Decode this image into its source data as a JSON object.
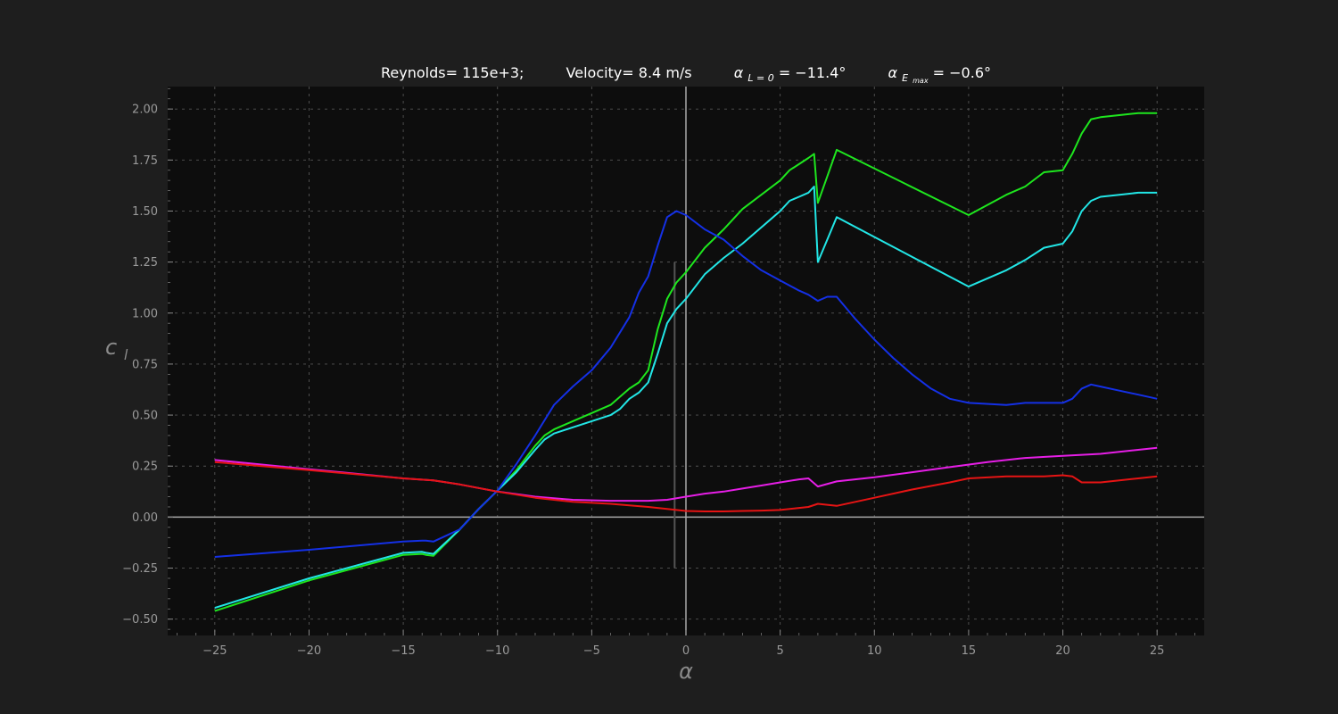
{
  "chart_data": {
    "type": "line",
    "title_parts": [
      "Reynolds= 115e+3;",
      "Velocity= 8.4 m/s",
      "α",
      "L = 0",
      " = −11.4°",
      "α",
      "E",
      "max",
      " = −0.6°"
    ],
    "xlabel": "α",
    "ylabel_main": "c",
    "ylabel_sub": "l",
    "xlim": [
      -27.5,
      27.5
    ],
    "ylim": [
      -0.58,
      2.11
    ],
    "x_ticks": [
      -25,
      -20,
      -15,
      -10,
      -5,
      0,
      5,
      10,
      15,
      20,
      25
    ],
    "x_tick_labels": [
      "−25",
      "−20",
      "−15",
      "−10",
      "−5",
      "0",
      "5",
      "10",
      "15",
      "20",
      "25"
    ],
    "y_ticks": [
      -0.5,
      -0.25,
      0.0,
      0.25,
      0.5,
      0.75,
      1.0,
      1.25,
      1.5,
      1.75,
      2.0
    ],
    "y_tick_labels": [
      "−0.50",
      "−0.25",
      "0.00",
      "0.25",
      "0.50",
      "0.75",
      "1.00",
      "1.25",
      "1.50",
      "1.75",
      "2.00"
    ],
    "grid": true,
    "reference_line": {
      "x": -0.6,
      "y_range": [
        -0.25,
        1.25
      ]
    },
    "series": [
      {
        "color": "#1ee61e",
        "x": [
          -25,
          -20,
          -15,
          -14,
          -13.8,
          -13.4,
          -12,
          -11,
          -10,
          -9,
          -8,
          -7.5,
          -7,
          -6,
          -5,
          -4,
          -3.5,
          -3,
          -2.5,
          -2,
          -1.5,
          -1,
          -0.5,
          0,
          1,
          2,
          3,
          4,
          5,
          5.5,
          6,
          6.5,
          6.8,
          7,
          8,
          15,
          17,
          18,
          19,
          20,
          20.5,
          21,
          21.5,
          22,
          23,
          24,
          25
        ],
        "y": [
          -0.46,
          -0.31,
          -0.185,
          -0.18,
          -0.185,
          -0.19,
          -0.06,
          0.04,
          0.13,
          0.23,
          0.35,
          0.4,
          0.43,
          0.47,
          0.51,
          0.55,
          0.59,
          0.63,
          0.66,
          0.72,
          0.92,
          1.07,
          1.15,
          1.2,
          1.32,
          1.41,
          1.51,
          1.58,
          1.65,
          1.7,
          1.73,
          1.76,
          1.78,
          1.54,
          1.8,
          1.48,
          1.58,
          1.62,
          1.69,
          1.7,
          1.78,
          1.88,
          1.95,
          1.96,
          1.97,
          1.98,
          1.98
        ]
      },
      {
        "color": "#22e6e6",
        "x": [
          -25,
          -20,
          -15,
          -14,
          -13.8,
          -13.4,
          -12,
          -11,
          -10,
          -9,
          -8,
          -7.5,
          -7,
          -6,
          -5,
          -4,
          -3.5,
          -3,
          -2.5,
          -2,
          -1.5,
          -1,
          -0.5,
          0,
          1,
          2,
          3,
          4,
          5,
          5.5,
          6,
          6.5,
          6.8,
          7,
          8,
          15,
          17,
          18,
          19,
          20,
          20.5,
          21,
          21.5,
          22,
          23,
          24,
          25
        ],
        "y": [
          -0.445,
          -0.3,
          -0.175,
          -0.17,
          -0.175,
          -0.18,
          -0.06,
          0.04,
          0.13,
          0.22,
          0.33,
          0.38,
          0.41,
          0.44,
          0.47,
          0.5,
          0.53,
          0.58,
          0.61,
          0.66,
          0.8,
          0.95,
          1.02,
          1.07,
          1.19,
          1.27,
          1.34,
          1.42,
          1.5,
          1.55,
          1.57,
          1.59,
          1.62,
          1.25,
          1.47,
          1.13,
          1.21,
          1.26,
          1.32,
          1.34,
          1.4,
          1.5,
          1.55,
          1.57,
          1.58,
          1.59,
          1.59
        ]
      },
      {
        "color": "#1430e6",
        "x": [
          -25,
          -20,
          -15,
          -14,
          -13.8,
          -13.4,
          -12,
          -11,
          -10,
          -9,
          -8,
          -7,
          -6,
          -5,
          -4,
          -3,
          -2.5,
          -2,
          -1.5,
          -1,
          -0.5,
          0,
          1,
          2,
          3,
          4,
          5,
          6,
          6.5,
          7,
          7.5,
          8,
          9,
          10,
          11,
          12,
          13,
          14,
          15,
          17,
          18,
          19,
          20,
          20.5,
          21,
          21.5,
          22,
          23,
          24,
          25
        ],
        "y": [
          -0.195,
          -0.16,
          -0.12,
          -0.115,
          -0.115,
          -0.12,
          -0.06,
          0.04,
          0.13,
          0.26,
          0.4,
          0.55,
          0.64,
          0.72,
          0.83,
          0.98,
          1.1,
          1.18,
          1.33,
          1.47,
          1.5,
          1.48,
          1.41,
          1.36,
          1.28,
          1.21,
          1.16,
          1.11,
          1.09,
          1.06,
          1.08,
          1.08,
          0.97,
          0.87,
          0.78,
          0.7,
          0.63,
          0.58,
          0.56,
          0.55,
          0.56,
          0.56,
          0.56,
          0.58,
          0.63,
          0.65,
          0.64,
          0.62,
          0.6,
          0.58
        ]
      },
      {
        "color": "#e61ee6",
        "x": [
          -25,
          -20,
          -15,
          -13.4,
          -12,
          -10,
          -8,
          -6,
          -4,
          -2,
          -1,
          0,
          1,
          2,
          3,
          4,
          5,
          6,
          6.5,
          7,
          8,
          10,
          12,
          14,
          16,
          18,
          20,
          22,
          25
        ],
        "y": [
          0.28,
          0.235,
          0.19,
          0.18,
          0.16,
          0.125,
          0.1,
          0.085,
          0.08,
          0.08,
          0.085,
          0.1,
          0.115,
          0.125,
          0.14,
          0.155,
          0.17,
          0.185,
          0.19,
          0.15,
          0.175,
          0.195,
          0.22,
          0.245,
          0.27,
          0.29,
          0.3,
          0.31,
          0.34
        ]
      },
      {
        "color": "#e61414",
        "x": [
          -25,
          -20,
          -15,
          -13.4,
          -12,
          -10,
          -8,
          -6,
          -4,
          -2,
          -1,
          0,
          1,
          2,
          3,
          4,
          5,
          6,
          6.5,
          7,
          8,
          10,
          12,
          14,
          15,
          17,
          18,
          19,
          20,
          20.5,
          21,
          22,
          23,
          24,
          25
        ],
        "y": [
          0.27,
          0.23,
          0.19,
          0.18,
          0.16,
          0.125,
          0.095,
          0.075,
          0.065,
          0.05,
          0.04,
          0.03,
          0.028,
          0.028,
          0.03,
          0.032,
          0.035,
          0.045,
          0.05,
          0.065,
          0.055,
          0.095,
          0.135,
          0.17,
          0.19,
          0.2,
          0.2,
          0.2,
          0.205,
          0.2,
          0.17,
          0.17,
          0.18,
          0.19,
          0.2
        ]
      }
    ]
  }
}
